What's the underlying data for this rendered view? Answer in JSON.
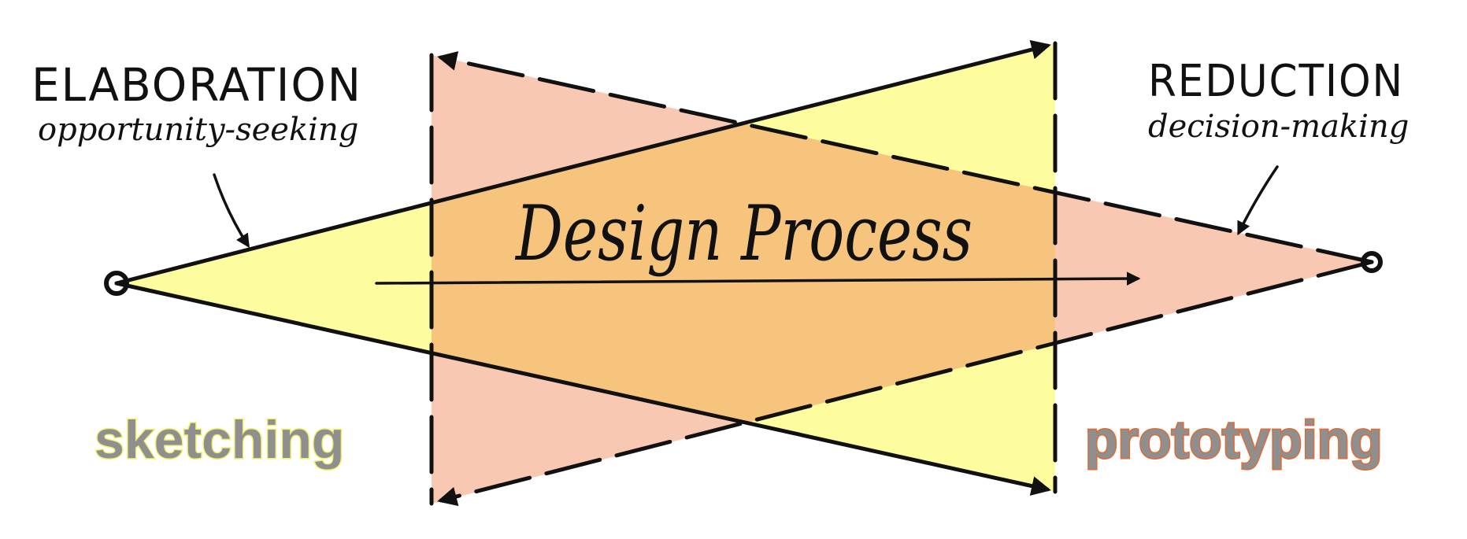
{
  "diagram": {
    "elaboration": {
      "heading": "ELABORATION",
      "subheading": "opportunity-seeking"
    },
    "reduction": {
      "heading": "REDUCTION",
      "subheading": "decision-making"
    },
    "center_title": "Design Process",
    "left_label": "sketching",
    "right_label": "prototyping",
    "colors": {
      "elaboration_fill": "#fdfd9f",
      "reduction_fill": "#f8c8b2",
      "overlap_fill": "#f6c47c",
      "sketching_text": "#8f8f8f",
      "sketching_outline": "#f2f269",
      "prototyping_text": "#8f8f8f",
      "prototyping_outline": "#e06a31",
      "ink": "#111111"
    }
  }
}
